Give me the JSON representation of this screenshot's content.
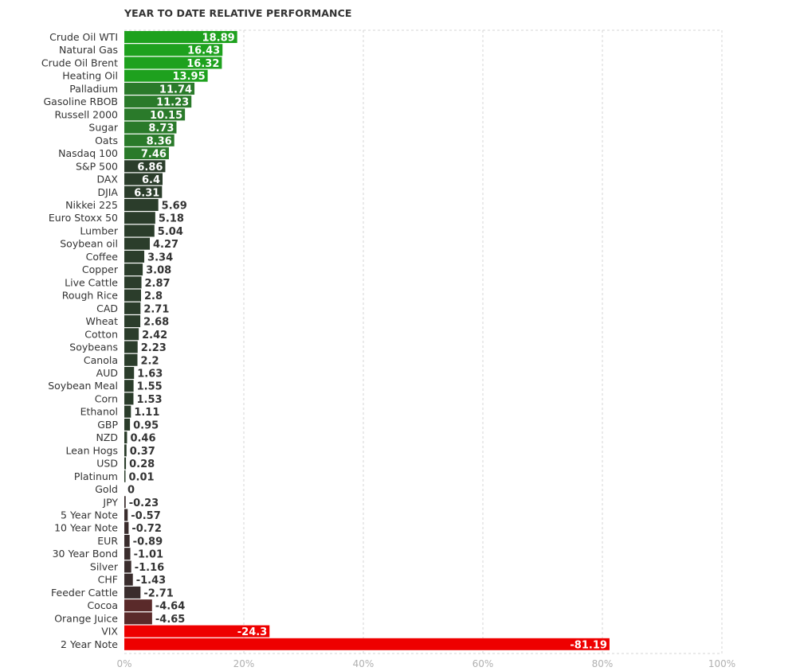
{
  "chart_data": {
    "type": "bar",
    "orientation": "horizontal",
    "title": "YEAR TO DATE RELATIVE PERFORMANCE",
    "xlabel": "",
    "ylabel": "",
    "xlim": [
      0,
      100
    ],
    "grid": true,
    "x_ticks": [
      "0%",
      "20%",
      "40%",
      "60%",
      "80%",
      "100%"
    ],
    "categories": [
      "Crude Oil WTI",
      "Natural Gas",
      "Crude Oil Brent",
      "Heating Oil",
      "Palladium",
      "Gasoline RBOB",
      "Russell 2000",
      "Sugar",
      "Oats",
      "Nasdaq 100",
      "S&P 500",
      "DAX",
      "DJIA",
      "Nikkei 225",
      "Euro Stoxx 50",
      "Lumber",
      "Soybean oil",
      "Coffee",
      "Copper",
      "Live Cattle",
      "Rough Rice",
      "CAD",
      "Wheat",
      "Cotton",
      "Soybeans",
      "Canola",
      "AUD",
      "Soybean Meal",
      "Corn",
      "Ethanol",
      "GBP",
      "NZD",
      "Lean Hogs",
      "USD",
      "Platinum",
      "Gold",
      "JPY",
      "5 Year Note",
      "10 Year Note",
      "EUR",
      "30 Year Bond",
      "Silver",
      "CHF",
      "Feeder Cattle",
      "Cocoa",
      "Orange Juice",
      "VIX",
      "2 Year Note"
    ],
    "values": [
      18.89,
      16.43,
      16.32,
      13.95,
      11.74,
      11.23,
      10.15,
      8.73,
      8.36,
      7.46,
      6.86,
      6.4,
      6.31,
      5.69,
      5.18,
      5.04,
      4.27,
      3.34,
      3.08,
      2.87,
      2.8,
      2.71,
      2.68,
      2.42,
      2.23,
      2.2,
      1.63,
      1.55,
      1.53,
      1.11,
      0.95,
      0.46,
      0.37,
      0.28,
      0.01,
      0,
      -0.23,
      -0.57,
      -0.72,
      -0.89,
      -1.01,
      -1.16,
      -1.43,
      -2.71,
      -4.64,
      -4.65,
      -24.3,
      -81.19
    ],
    "value_labels": [
      "18.89",
      "16.43",
      "16.32",
      "13.95",
      "11.74",
      "11.23",
      "10.15",
      "8.73",
      "8.36",
      "7.46",
      "6.86",
      "6.4",
      "6.31",
      "5.69",
      "5.18",
      "5.04",
      "4.27",
      "3.34",
      "3.08",
      "2.87",
      "2.8",
      "2.71",
      "2.68",
      "2.42",
      "2.23",
      "2.2",
      "1.63",
      "1.55",
      "1.53",
      "1.11",
      "0.95",
      "0.46",
      "0.37",
      "0.28",
      "0.01",
      "0",
      "-0.23",
      "-0.57",
      "-0.72",
      "-0.89",
      "-1.01",
      "-1.16",
      "-1.43",
      "-2.71",
      "-4.64",
      "-4.65",
      "-24.3",
      "-81.19"
    ],
    "colors": {
      "positive_high": "#1ea11e",
      "positive_mid": "#2a7a2a",
      "positive_low": "#2b3d2b",
      "negative_low": "#3a2d2d",
      "negative_mid": "#5a2a2a",
      "negative_high": "#ee0000",
      "grid": "#d6d6d6"
    }
  }
}
